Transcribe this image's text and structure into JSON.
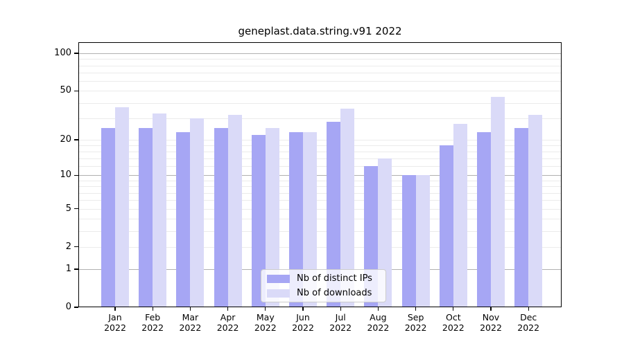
{
  "chart_data": {
    "type": "bar",
    "title": "geneplast.data.string.v91 2022",
    "categories": [
      "Jan 2022",
      "Feb 2022",
      "Mar 2022",
      "Apr 2022",
      "May 2022",
      "Jun 2022",
      "Jul 2022",
      "Aug 2022",
      "Sep 2022",
      "Oct 2022",
      "Nov 2022",
      "Dec 2022"
    ],
    "series": [
      {
        "name": "Nb of distinct IPs",
        "color": "#a6a6f4",
        "values": [
          25,
          25,
          23,
          25,
          22,
          23,
          28,
          12,
          10,
          18,
          23,
          25
        ]
      },
      {
        "name": "Nb of downloads",
        "color": "#dadaf8",
        "values": [
          37,
          33,
          30,
          32,
          25,
          23,
          36,
          14,
          10,
          27,
          45,
          32
        ]
      }
    ],
    "xlabel": "",
    "ylabel": "",
    "yscale": "log1p",
    "yticks": [
      0,
      1,
      2,
      5,
      10,
      20,
      50,
      100
    ],
    "major_gridlines": [
      1,
      10,
      100
    ],
    "minor_gridlines": [
      2,
      3,
      4,
      5,
      6,
      7,
      8,
      9,
      12,
      14,
      16,
      18,
      20,
      30,
      40,
      50,
      60,
      70,
      80,
      90
    ],
    "ylim": [
      0,
      122
    ],
    "grid": "horizontal",
    "legend_position": "inside-bottom-center"
  }
}
